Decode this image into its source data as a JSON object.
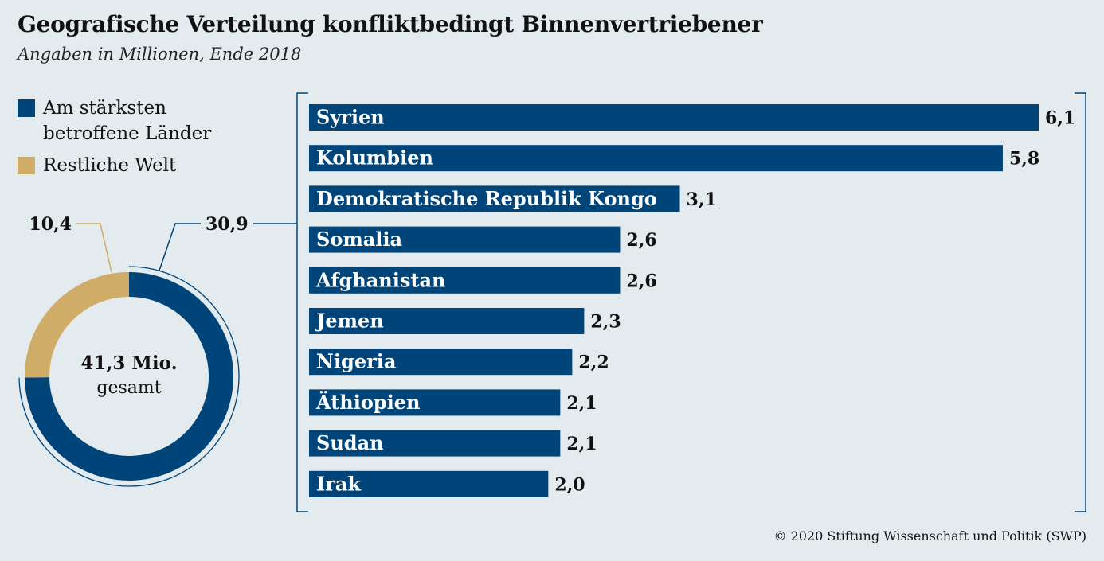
{
  "title": "Geografische Verteilung konfliktbedingt Binnenvertriebener",
  "subtitle": "Angaben in Millionen, Ende 2018",
  "legend": [
    {
      "label": "Am stärksten betroffene Länder",
      "color": "#00457a"
    },
    {
      "label": "Restliche Welt",
      "color": "#cfac67"
    }
  ],
  "credit": "© 2020 Stiftung Wissenschaft und Politik (SWP)",
  "chart_data": [
    {
      "type": "pie",
      "categories": [
        "Am stärksten betroffene Länder",
        "Restliche Welt"
      ],
      "values": [
        30.9,
        10.4
      ],
      "value_labels": [
        "30,9",
        "10,4"
      ],
      "center_label": [
        "41,3 Mio.",
        "gesamt"
      ],
      "colors": [
        "#00457a",
        "#cfac67"
      ]
    },
    {
      "type": "bar",
      "orientation": "horizontal",
      "categories": [
        "Syrien",
        "Kolumbien",
        "Demokratische Republik Kongo",
        "Somalia",
        "Afghanistan",
        "Jemen",
        "Nigeria",
        "Äthiopien",
        "Sudan",
        "Irak"
      ],
      "values": [
        6.1,
        5.8,
        3.1,
        2.6,
        2.6,
        2.3,
        2.2,
        2.1,
        2.1,
        2.0
      ],
      "value_labels": [
        "6,1",
        "5,8",
        "3,1",
        "2,6",
        "2,6",
        "2,3",
        "2,2",
        "2,1",
        "2,1",
        "2,0"
      ],
      "color": "#00457a",
      "xlim": [
        0,
        6.1
      ]
    }
  ]
}
